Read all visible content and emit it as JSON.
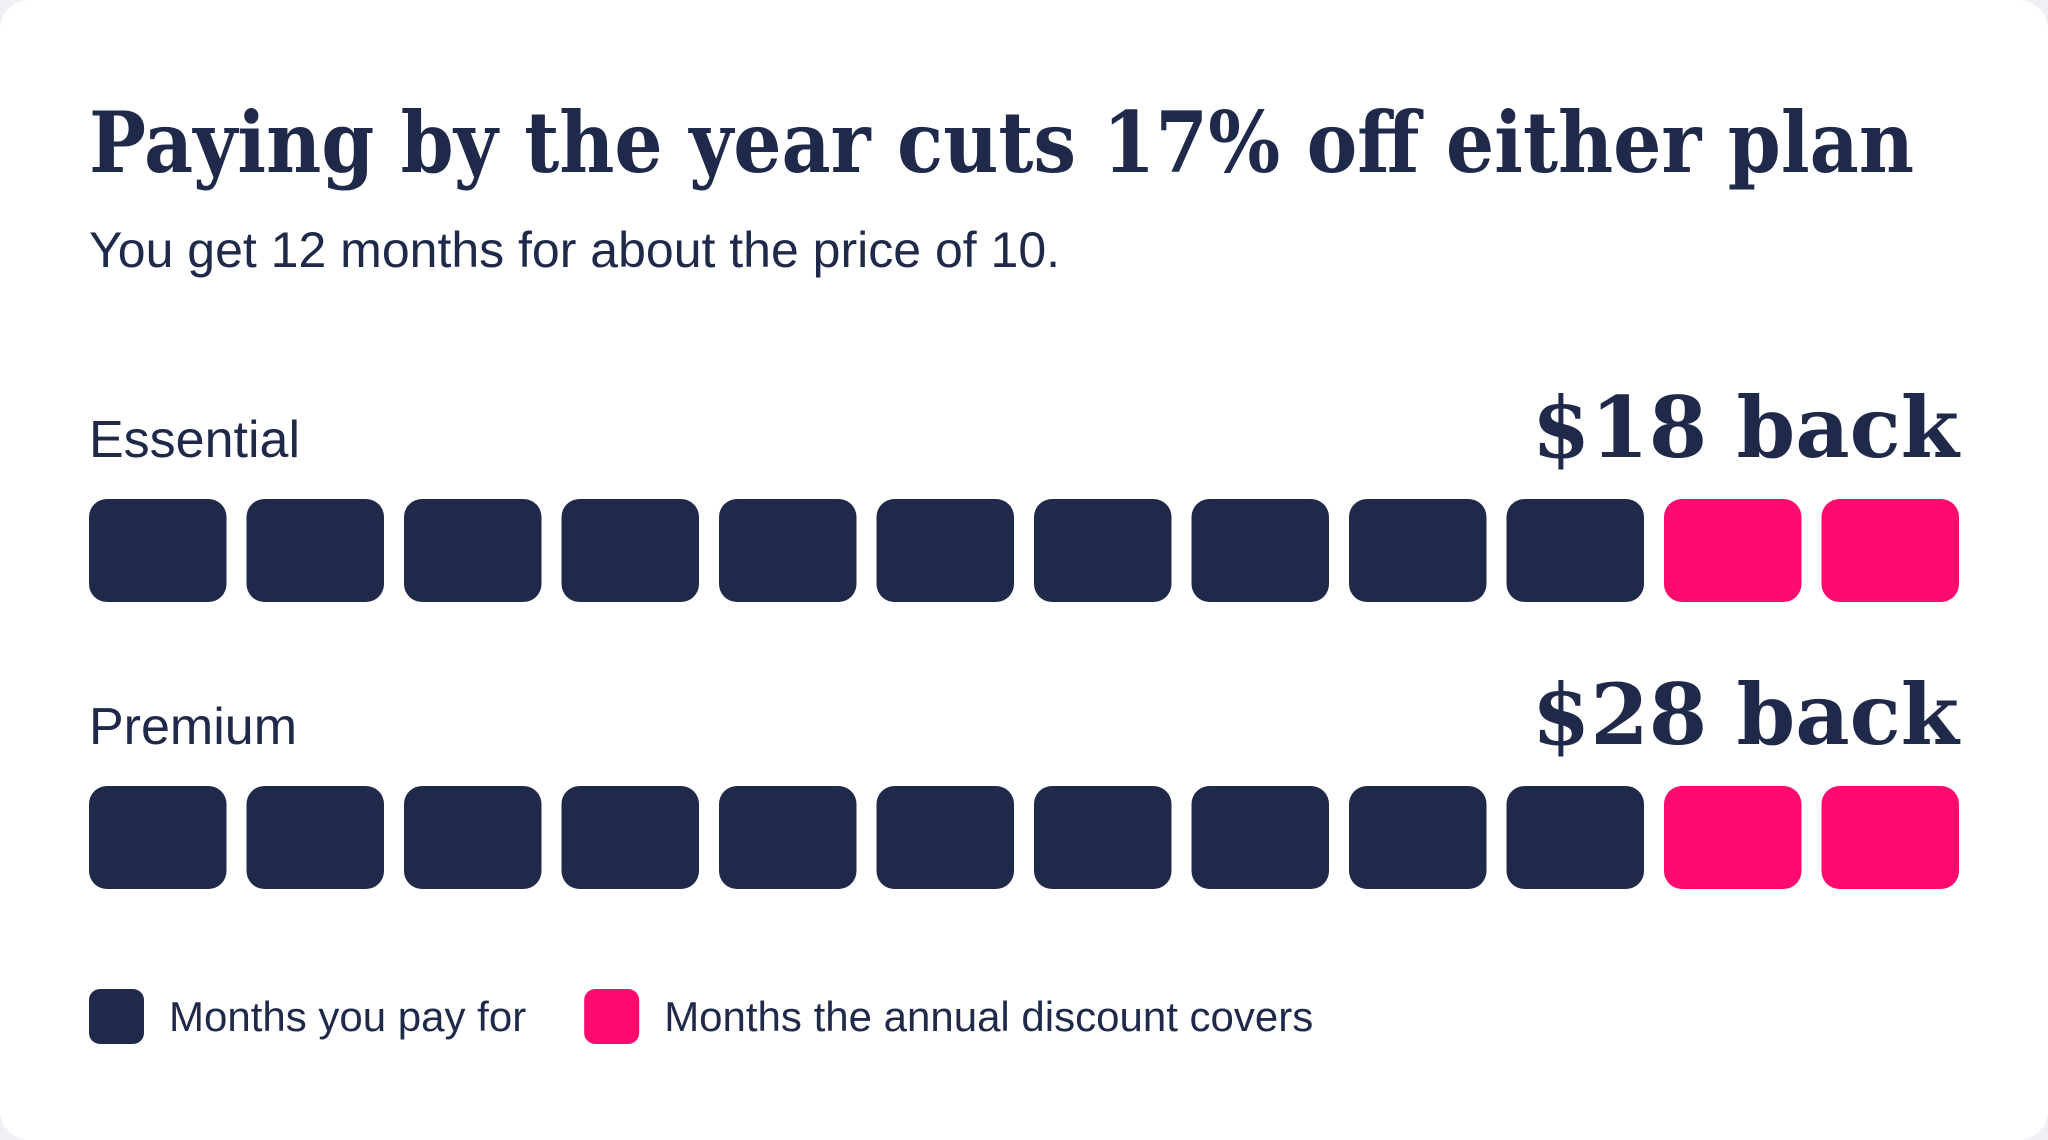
{
  "chart_data": {
    "type": "waffle",
    "title": "Paying by the year cuts 17% off either plan",
    "subtitle": "You get 12 months for about the price of 10.",
    "categories": [
      "Essential",
      "Premium"
    ],
    "annotations": [
      "$18 back",
      "$28 back"
    ],
    "series": [
      {
        "name": "Months you pay for",
        "color": "#1f2a4a",
        "values": [
          10,
          10
        ]
      },
      {
        "name": "Months the annual discount covers",
        "color": "#ff0a6e",
        "values": [
          2,
          2
        ]
      }
    ]
  }
}
